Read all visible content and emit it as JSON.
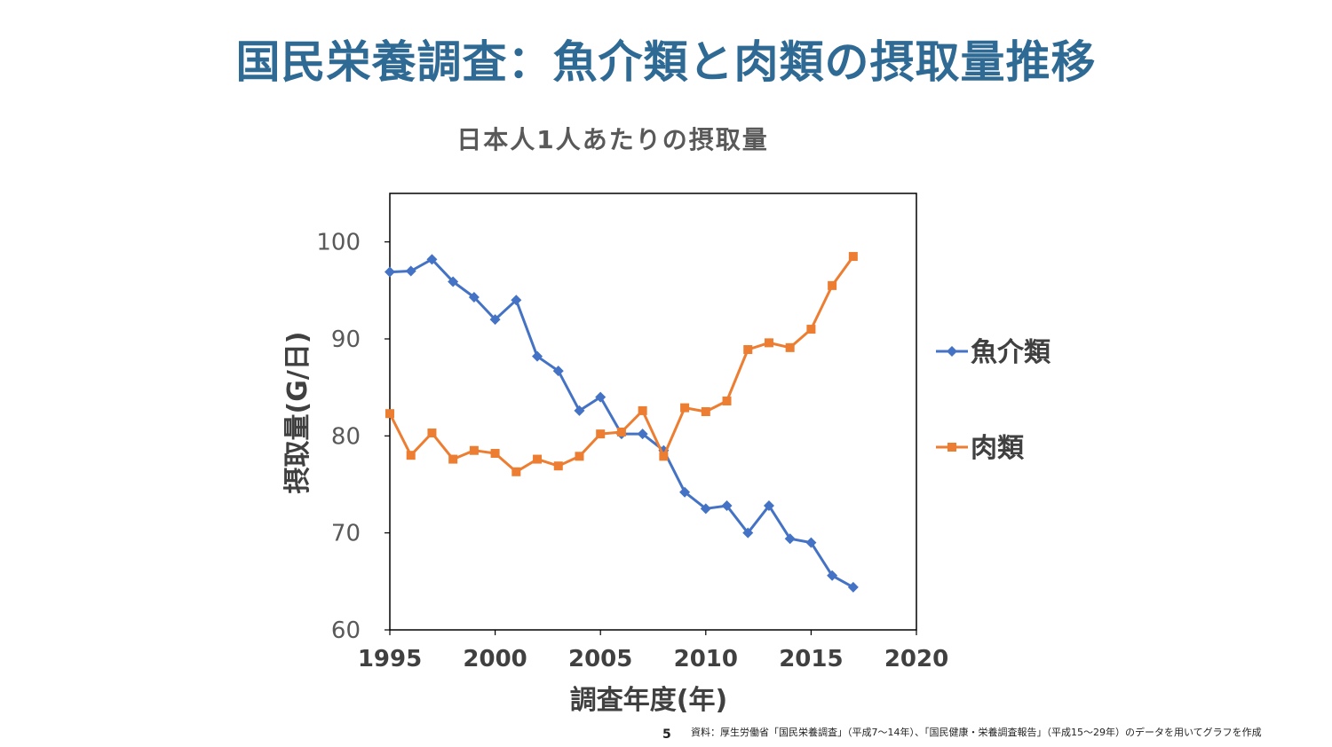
{
  "slide": {
    "title": "国民栄養調査：魚介類と肉類の摂取量推移",
    "footer_note": "資料：厚生労働省「国民栄養調査」（平成7〜14年）、「国民健康・栄養調査報告」（平成15〜29年）のデータを用いてグラフを作成",
    "page_number": "5"
  },
  "chart_data": {
    "type": "line",
    "title": "日本人1人あたりの摂取量",
    "xlabel": "調査年度(年)",
    "ylabel": "摂取量(G/日)",
    "xlim": [
      1995,
      2020
    ],
    "ylim": [
      60,
      105
    ],
    "x_ticks": [
      1995,
      2000,
      2005,
      2010,
      2015,
      2020
    ],
    "y_ticks": [
      60,
      70,
      80,
      90,
      100
    ],
    "grid": false,
    "legend_position": "right",
    "x": [
      1995,
      1996,
      1997,
      1998,
      1999,
      2000,
      2001,
      2002,
      2003,
      2004,
      2005,
      2006,
      2007,
      2008,
      2009,
      2010,
      2011,
      2012,
      2013,
      2014,
      2015,
      2016,
      2017
    ],
    "series": [
      {
        "name": "魚介類",
        "color": "#4472c4",
        "marker": "diamond",
        "values": [
          96.9,
          97.0,
          98.2,
          95.9,
          94.3,
          92.0,
          94.0,
          88.2,
          86.7,
          82.6,
          84.0,
          80.2,
          80.2,
          78.5,
          74.2,
          72.5,
          72.8,
          70.0,
          72.8,
          69.4,
          69.0,
          65.6,
          64.4
        ]
      },
      {
        "name": "肉類",
        "color": "#ed7d31",
        "marker": "square",
        "values": [
          82.3,
          78.0,
          80.3,
          77.6,
          78.5,
          78.2,
          76.3,
          77.6,
          76.9,
          77.9,
          80.2,
          80.4,
          82.6,
          77.9,
          82.9,
          82.5,
          83.6,
          88.9,
          89.6,
          89.1,
          91.0,
          95.5,
          98.5
        ]
      }
    ]
  }
}
